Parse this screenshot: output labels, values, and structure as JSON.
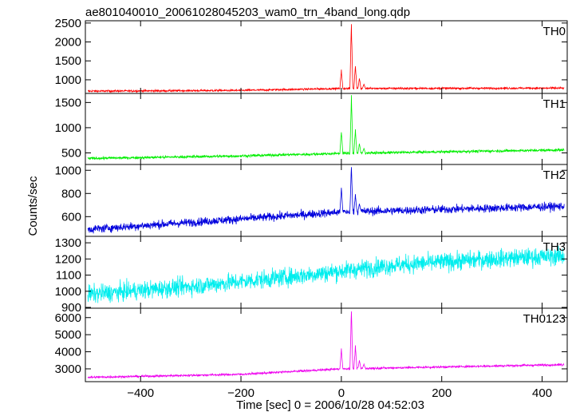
{
  "title": "ae801040010_20061028045203_wam0_trn_4band_long.qdp",
  "ylabel": "Counts/sec",
  "xlabel": "Time [sec] 0 = 2006/10/28 04:52:03",
  "chart_data": {
    "type": "line",
    "title": "ae801040010_20061028045203_wam0_trn_4band_long.qdp",
    "xlabel": "Time [sec] 0 = 2006/10/28 04:52:03",
    "ylabel": "Counts/sec",
    "xlim": [
      -510,
      450
    ],
    "x_ticks": [
      "−400",
      "−200",
      "0",
      "200",
      "400"
    ],
    "x_tick_values": [
      -400,
      -200,
      0,
      200,
      400
    ],
    "panels": [
      {
        "name": "TH0",
        "color": "#ff0000",
        "ylim": [
          640,
          2560
        ],
        "y_ticks": [
          1000,
          1500,
          2000,
          2500
        ],
        "y_tick_labels": [
          "1000",
          "1500",
          "2000",
          "2500"
        ],
        "baseline": [
          [
            -505,
            700
          ],
          [
            -200,
            720
          ],
          [
            0,
            770
          ],
          [
            450,
            780
          ]
        ],
        "noise": 25,
        "spikes": [
          [
            0,
            1300
          ],
          [
            20,
            2550
          ],
          [
            28,
            1450
          ],
          [
            36,
            1050
          ],
          [
            45,
            900
          ]
        ]
      },
      {
        "name": "TH1",
        "color": "#00ee00",
        "ylim": [
          270,
          1680
        ],
        "y_ticks": [
          500,
          1000,
          1500
        ],
        "y_tick_labels": [
          "500",
          "1000",
          "1500"
        ],
        "baseline": [
          [
            -505,
            390
          ],
          [
            -200,
            440
          ],
          [
            0,
            490
          ],
          [
            450,
            560
          ]
        ],
        "noise": 25,
        "spikes": [
          [
            0,
            980
          ],
          [
            20,
            1650
          ],
          [
            28,
            1000
          ],
          [
            36,
            700
          ],
          [
            45,
            600
          ]
        ]
      },
      {
        "name": "TH2",
        "color": "#0000dd",
        "ylim": [
          430,
          1050
        ],
        "y_ticks": [
          600,
          800,
          1000
        ],
        "y_tick_labels": [
          "600",
          "800",
          "1000"
        ],
        "baseline": [
          [
            -505,
            490
          ],
          [
            -200,
            580
          ],
          [
            0,
            640
          ],
          [
            450,
            690
          ]
        ],
        "noise": 35,
        "spikes": [
          [
            0,
            860
          ],
          [
            20,
            1040
          ],
          [
            28,
            800
          ],
          [
            36,
            720
          ]
        ]
      },
      {
        "name": "TH3",
        "color": "#00eeee",
        "ylim": [
          895,
          1340
        ],
        "y_ticks": [
          900,
          1000,
          1100,
          1200,
          1300
        ],
        "y_tick_labels": [
          "900",
          "1000",
          "1100",
          "1200",
          "1300"
        ],
        "baseline": [
          [
            -505,
            980
          ],
          [
            -300,
            1030
          ],
          [
            -100,
            1090
          ],
          [
            100,
            1160
          ],
          [
            300,
            1200
          ],
          [
            450,
            1220
          ]
        ],
        "noise": 55,
        "spikes": []
      },
      {
        "name": "TH0123",
        "color": "#ee00ee",
        "ylim": [
          2250,
          6550
        ],
        "y_ticks": [
          3000,
          4000,
          5000,
          6000
        ],
        "y_tick_labels": [
          "3000",
          "4000",
          "5000",
          "6000"
        ],
        "baseline": [
          [
            -505,
            2500
          ],
          [
            -200,
            2680
          ],
          [
            0,
            3000
          ],
          [
            450,
            3250
          ]
        ],
        "noise": 60,
        "spikes": [
          [
            0,
            4200
          ],
          [
            20,
            6500
          ],
          [
            28,
            4400
          ],
          [
            36,
            3500
          ],
          [
            45,
            3300
          ]
        ]
      }
    ]
  }
}
